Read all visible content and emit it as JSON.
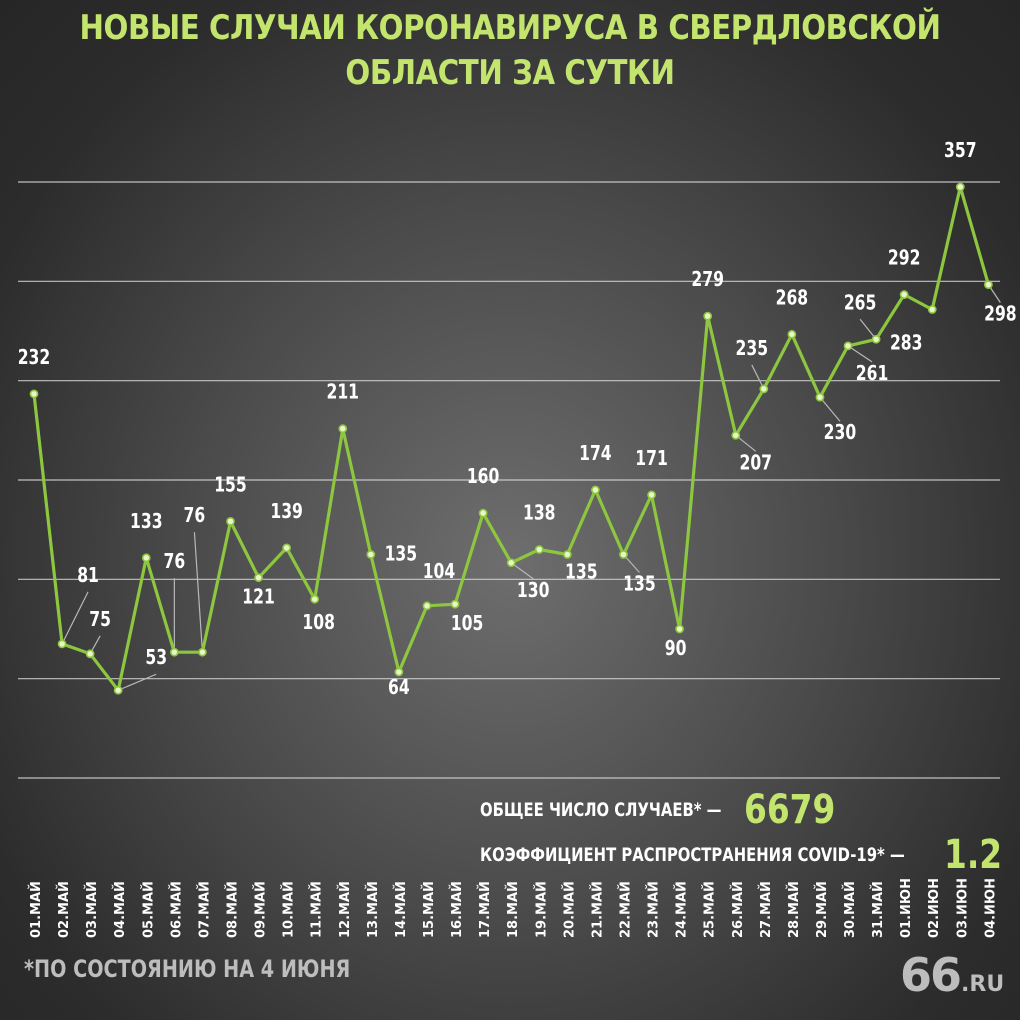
{
  "title": "НОВЫЕ СЛУЧАИ КОРОНАВИРУСА В СВЕРДЛОВСКОЙ ОБЛАСТИ ЗА СУТКИ",
  "stats": {
    "total_label": "ОБЩЕЕ ЧИСЛО СЛУЧАЕВ* —",
    "total_value": "6679",
    "coef_label": "КОЭФФИЦИЕНТ РАСПРОСТРАНЕНИЯ COVID-19* —",
    "coef_value": "1.2"
  },
  "footnote": "*ПО СОСТОЯНИЮ НА 4 ИЮНЯ",
  "logo": {
    "number": "66",
    "suffix": ".RU"
  },
  "colors": {
    "accent": "#c3e56e",
    "line": "#8dc63f",
    "grid": "#d9d9d9",
    "label": "#ffffff"
  },
  "chart_data": {
    "type": "line",
    "title": "НОВЫЕ СЛУЧАИ КОРОНАВИРУСА В СВЕРДЛОВСКОЙ ОБЛАСТИ ЗА СУТКИ",
    "xlabel": "",
    "ylabel": "",
    "grid": true,
    "ylim": [
      0,
      360
    ],
    "categories": [
      "01.МАЙ",
      "02.МАЙ",
      "03.МАЙ",
      "04.МАЙ",
      "05.МАЙ",
      "06.МАЙ",
      "07.МАЙ",
      "08.МАЙ",
      "09.МАЙ",
      "10.МАЙ",
      "11.МАЙ",
      "12.МАЙ",
      "13.МАЙ",
      "14.МАЙ",
      "15.МАЙ",
      "16.МАЙ",
      "17.МАЙ",
      "18.МАЙ",
      "19.МАЙ",
      "20.МАЙ",
      "21.МАЙ",
      "22.МАЙ",
      "23.МАЙ",
      "24.МАЙ",
      "25.МАЙ",
      "26.МАЙ",
      "27.МАЙ",
      "28.МАЙ",
      "29.МАЙ",
      "30.МАЙ",
      "31.МАЙ",
      "01.ИЮН",
      "02.ИЮН",
      "03.ИЮН",
      "04.ИЮН"
    ],
    "values": [
      232,
      81,
      75,
      53,
      133,
      76,
      76,
      155,
      121,
      139,
      108,
      211,
      135,
      64,
      104,
      105,
      160,
      130,
      138,
      135,
      174,
      135,
      171,
      90,
      279,
      207,
      235,
      268,
      230,
      261,
      265,
      292,
      283,
      357,
      298
    ]
  }
}
